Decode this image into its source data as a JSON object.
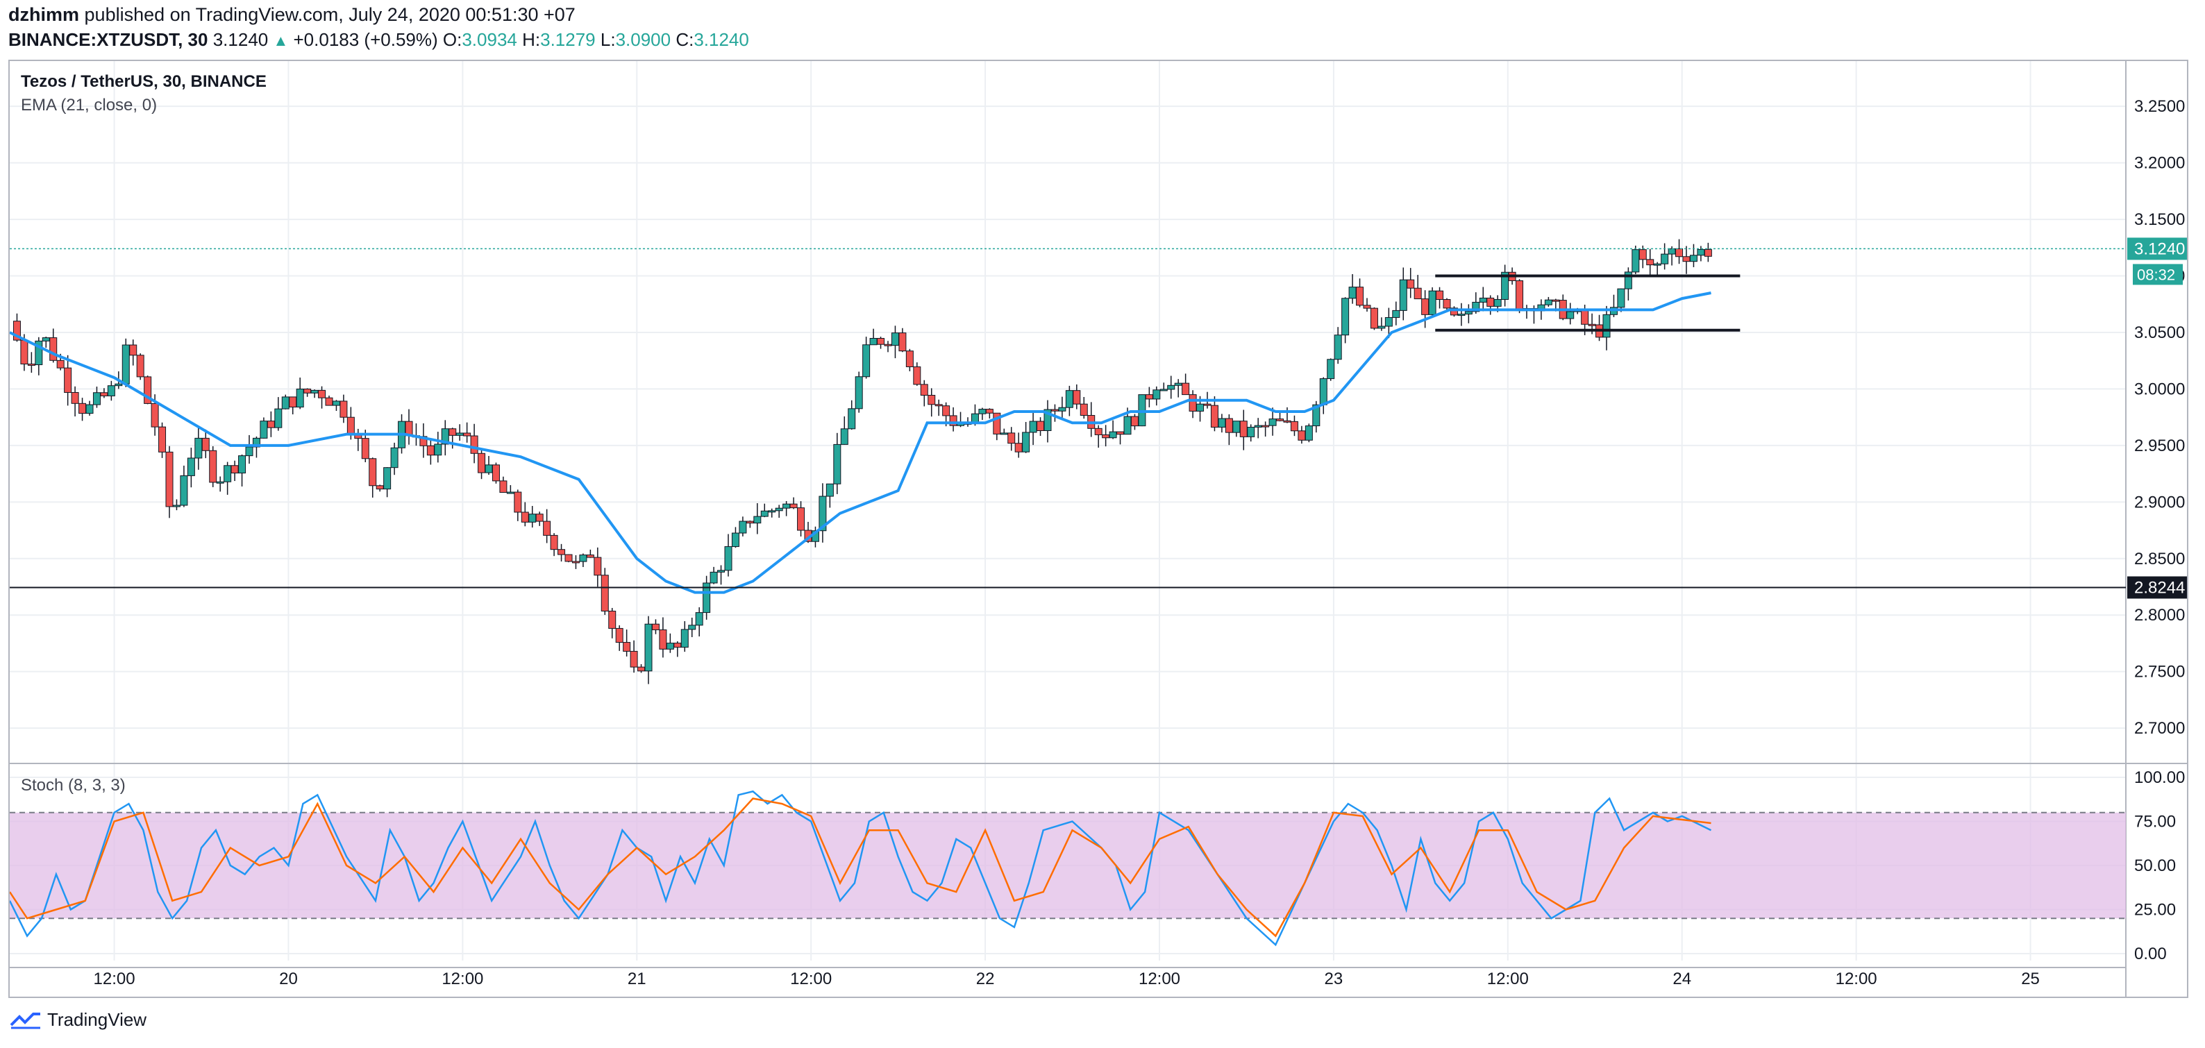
{
  "header": {
    "author": "dzhimm",
    "published_text": "published on TradingView.com, July 24, 2020 00:51:30 +07",
    "symbol_full": "BINANCE:XTZUSDT, 30",
    "last": "3.1240",
    "change": "+0.0183 (+0.59%)",
    "o_label": "O:",
    "o_value": "3.0934",
    "h_label": "H:",
    "h_value": "3.1279",
    "l_label": "L:",
    "l_value": "3.0900",
    "c_label": "C:",
    "c_value": "3.1240"
  },
  "legend": {
    "symbol": "Tezos / TetherUS, 30, BINANCE",
    "ema": "EMA (21, close, 0)",
    "stoch": "Stoch (8, 3, 3)"
  },
  "footer": {
    "brand": "TradingView"
  },
  "colors": {
    "up": "#26a69a",
    "down": "#ef5350",
    "ema": "#2196f3",
    "k": "#2196f3",
    "d": "#ff6d00",
    "band": "#e1bee7",
    "grid": "#eceff3",
    "price_line": "#26a69a"
  },
  "chart_data": [
    {
      "type": "candlestick",
      "title": "Tezos / TetherUS, 30, BINANCE",
      "ylim": [
        2.67,
        3.29
      ],
      "y_ticks": [
        "3.2500",
        "3.2000",
        "3.1500",
        "3.1000",
        "3.0500",
        "3.0000",
        "2.9500",
        "2.9000",
        "2.8500",
        "2.8000",
        "2.7500",
        "2.7000"
      ],
      "x_ticks": [
        "12:00",
        "20",
        "12:00",
        "21",
        "12:00",
        "22",
        "12:00",
        "23",
        "12:00",
        "24",
        "12:00",
        "25"
      ],
      "x_tick_hours": [
        12,
        24,
        36,
        48,
        60,
        72,
        84,
        96,
        108,
        120,
        132,
        144
      ],
      "x_range_hours": [
        4.8,
        150
      ],
      "close_path_hours": [
        4.8,
        6,
        7,
        9,
        10,
        12,
        13,
        14,
        15,
        16,
        17,
        18,
        19,
        20,
        22,
        24,
        26,
        28,
        30,
        32,
        34,
        35,
        36,
        38,
        40,
        42,
        44,
        45,
        46,
        47,
        48,
        49,
        50,
        51,
        52,
        53,
        54,
        55,
        56,
        57,
        58,
        59,
        60,
        62,
        64,
        66,
        68,
        70,
        71,
        72,
        73,
        74,
        76,
        78,
        80,
        82,
        84,
        86,
        88,
        90,
        92,
        94,
        96,
        97,
        98,
        99,
        100,
        101,
        102,
        103,
        104,
        105,
        106,
        107,
        108,
        109,
        110,
        111,
        112,
        113,
        114,
        115,
        116,
        117,
        118,
        119,
        120,
        121,
        122
      ],
      "close_path": [
        3.06,
        3.02,
        3.05,
        3.0,
        2.98,
        3.0,
        3.04,
        3.0,
        2.96,
        2.88,
        2.94,
        2.95,
        2.92,
        2.93,
        2.96,
        2.99,
        3.0,
        2.98,
        2.91,
        2.97,
        2.94,
        2.96,
        2.96,
        2.92,
        2.89,
        2.87,
        2.84,
        2.86,
        2.8,
        2.77,
        2.74,
        2.8,
        2.77,
        2.77,
        2.8,
        2.83,
        2.85,
        2.87,
        2.89,
        2.89,
        2.9,
        2.89,
        2.87,
        2.95,
        3.04,
        3.05,
        2.99,
        2.97,
        2.97,
        2.98,
        2.96,
        2.95,
        2.97,
        3.0,
        2.96,
        2.97,
        3.01,
        2.99,
        2.97,
        2.96,
        2.97,
        2.96,
        3.04,
        3.09,
        3.07,
        3.05,
        3.06,
        3.1,
        3.07,
        3.08,
        3.06,
        3.06,
        3.09,
        3.08,
        3.1,
        3.07,
        3.08,
        3.07,
        3.07,
        3.06,
        3.05,
        3.06,
        3.09,
        3.13,
        3.1,
        3.124,
        3.12,
        3.12,
        3.124
      ],
      "ema_hours": [
        4.8,
        8,
        12,
        16,
        20,
        24,
        28,
        32,
        36,
        40,
        44,
        48,
        50,
        52,
        54,
        56,
        58,
        60,
        62,
        64,
        66,
        68,
        70,
        72,
        74,
        76,
        78,
        80,
        82,
        84,
        86,
        88,
        90,
        92,
        94,
        96,
        98,
        100,
        102,
        104,
        106,
        108,
        110,
        112,
        114,
        116,
        118,
        120,
        122
      ],
      "ema": [
        3.05,
        3.03,
        3.01,
        2.98,
        2.95,
        2.95,
        2.96,
        2.96,
        2.95,
        2.94,
        2.92,
        2.85,
        2.83,
        2.82,
        2.82,
        2.83,
        2.85,
        2.87,
        2.89,
        2.9,
        2.91,
        2.97,
        2.97,
        2.97,
        2.98,
        2.98,
        2.97,
        2.97,
        2.98,
        2.98,
        2.99,
        2.99,
        2.99,
        2.98,
        2.98,
        2.99,
        3.02,
        3.05,
        3.06,
        3.07,
        3.07,
        3.07,
        3.07,
        3.07,
        3.07,
        3.07,
        3.07,
        3.08,
        3.085
      ],
      "annotations": [
        {
          "type": "horizontal_line",
          "value": 2.8244,
          "label": "2.8244"
        },
        {
          "type": "segment",
          "value": 3.1,
          "from_hour": 103,
          "to_hour": 124
        },
        {
          "type": "segment",
          "value": 3.052,
          "from_hour": 103,
          "to_hour": 124
        }
      ],
      "last_price": {
        "value": 3.124,
        "label": "3.1240",
        "countdown": "08:32"
      }
    },
    {
      "type": "line",
      "title": "Stoch (8, 3, 3)",
      "ylim": [
        0,
        100
      ],
      "y_ticks": [
        "100.00",
        "75.00",
        "50.00",
        "25.00",
        "0.00"
      ],
      "band": [
        20,
        80
      ],
      "series": [
        {
          "name": "%K",
          "hours": [
            4.8,
            6,
            7,
            8,
            9,
            10,
            12,
            13,
            14,
            15,
            16,
            17,
            18,
            19,
            20,
            21,
            22,
            23,
            24,
            25,
            26,
            28,
            30,
            31,
            32,
            33,
            34,
            35,
            36,
            38,
            40,
            41,
            42,
            43,
            44,
            46,
            47,
            48,
            49,
            50,
            51,
            52,
            53,
            54,
            55,
            56,
            57,
            58,
            59,
            60,
            62,
            63,
            64,
            65,
            66,
            67,
            68,
            69,
            70,
            71,
            72,
            73,
            74,
            75,
            76,
            78,
            80,
            81,
            82,
            83,
            84,
            86,
            88,
            90,
            92,
            94,
            96,
            97,
            98,
            99,
            100,
            101,
            102,
            103,
            104,
            105,
            106,
            107,
            108,
            109,
            110,
            111,
            112,
            113,
            114,
            115,
            116,
            117,
            118,
            119,
            120,
            121,
            122
          ],
          "values": [
            30,
            10,
            20,
            45,
            25,
            30,
            80,
            85,
            70,
            35,
            20,
            30,
            60,
            70,
            50,
            45,
            55,
            60,
            50,
            85,
            90,
            55,
            30,
            70,
            55,
            30,
            40,
            60,
            75,
            30,
            55,
            75,
            50,
            30,
            20,
            45,
            70,
            60,
            55,
            30,
            55,
            40,
            65,
            50,
            90,
            92,
            85,
            90,
            80,
            75,
            30,
            40,
            75,
            80,
            55,
            35,
            30,
            40,
            65,
            60,
            40,
            20,
            15,
            40,
            70,
            75,
            60,
            50,
            25,
            35,
            80,
            70,
            45,
            20,
            5,
            40,
            75,
            85,
            80,
            70,
            50,
            25,
            65,
            40,
            30,
            40,
            75,
            80,
            65,
            40,
            30,
            20,
            25,
            30,
            80,
            88,
            70,
            75,
            80,
            75,
            78,
            74,
            70
          ]
        },
        {
          "name": "%D",
          "hours": [
            4.8,
            6,
            8,
            10,
            12,
            14,
            16,
            18,
            20,
            22,
            24,
            26,
            28,
            30,
            32,
            34,
            36,
            38,
            40,
            42,
            44,
            46,
            48,
            50,
            52,
            54,
            56,
            58,
            60,
            62,
            64,
            66,
            68,
            70,
            72,
            74,
            76,
            78,
            80,
            82,
            84,
            86,
            88,
            90,
            92,
            94,
            96,
            98,
            100,
            102,
            104,
            106,
            108,
            110,
            112,
            114,
            116,
            118,
            120,
            122
          ],
          "values": [
            35,
            20,
            25,
            30,
            75,
            80,
            30,
            35,
            60,
            50,
            55,
            85,
            50,
            40,
            55,
            35,
            60,
            40,
            65,
            40,
            25,
            45,
            60,
            45,
            55,
            70,
            88,
            85,
            78,
            40,
            70,
            70,
            40,
            35,
            70,
            30,
            35,
            70,
            60,
            40,
            65,
            72,
            45,
            25,
            10,
            40,
            80,
            78,
            45,
            60,
            35,
            70,
            70,
            35,
            25,
            30,
            60,
            78,
            76,
            74
          ]
        }
      ]
    }
  ]
}
